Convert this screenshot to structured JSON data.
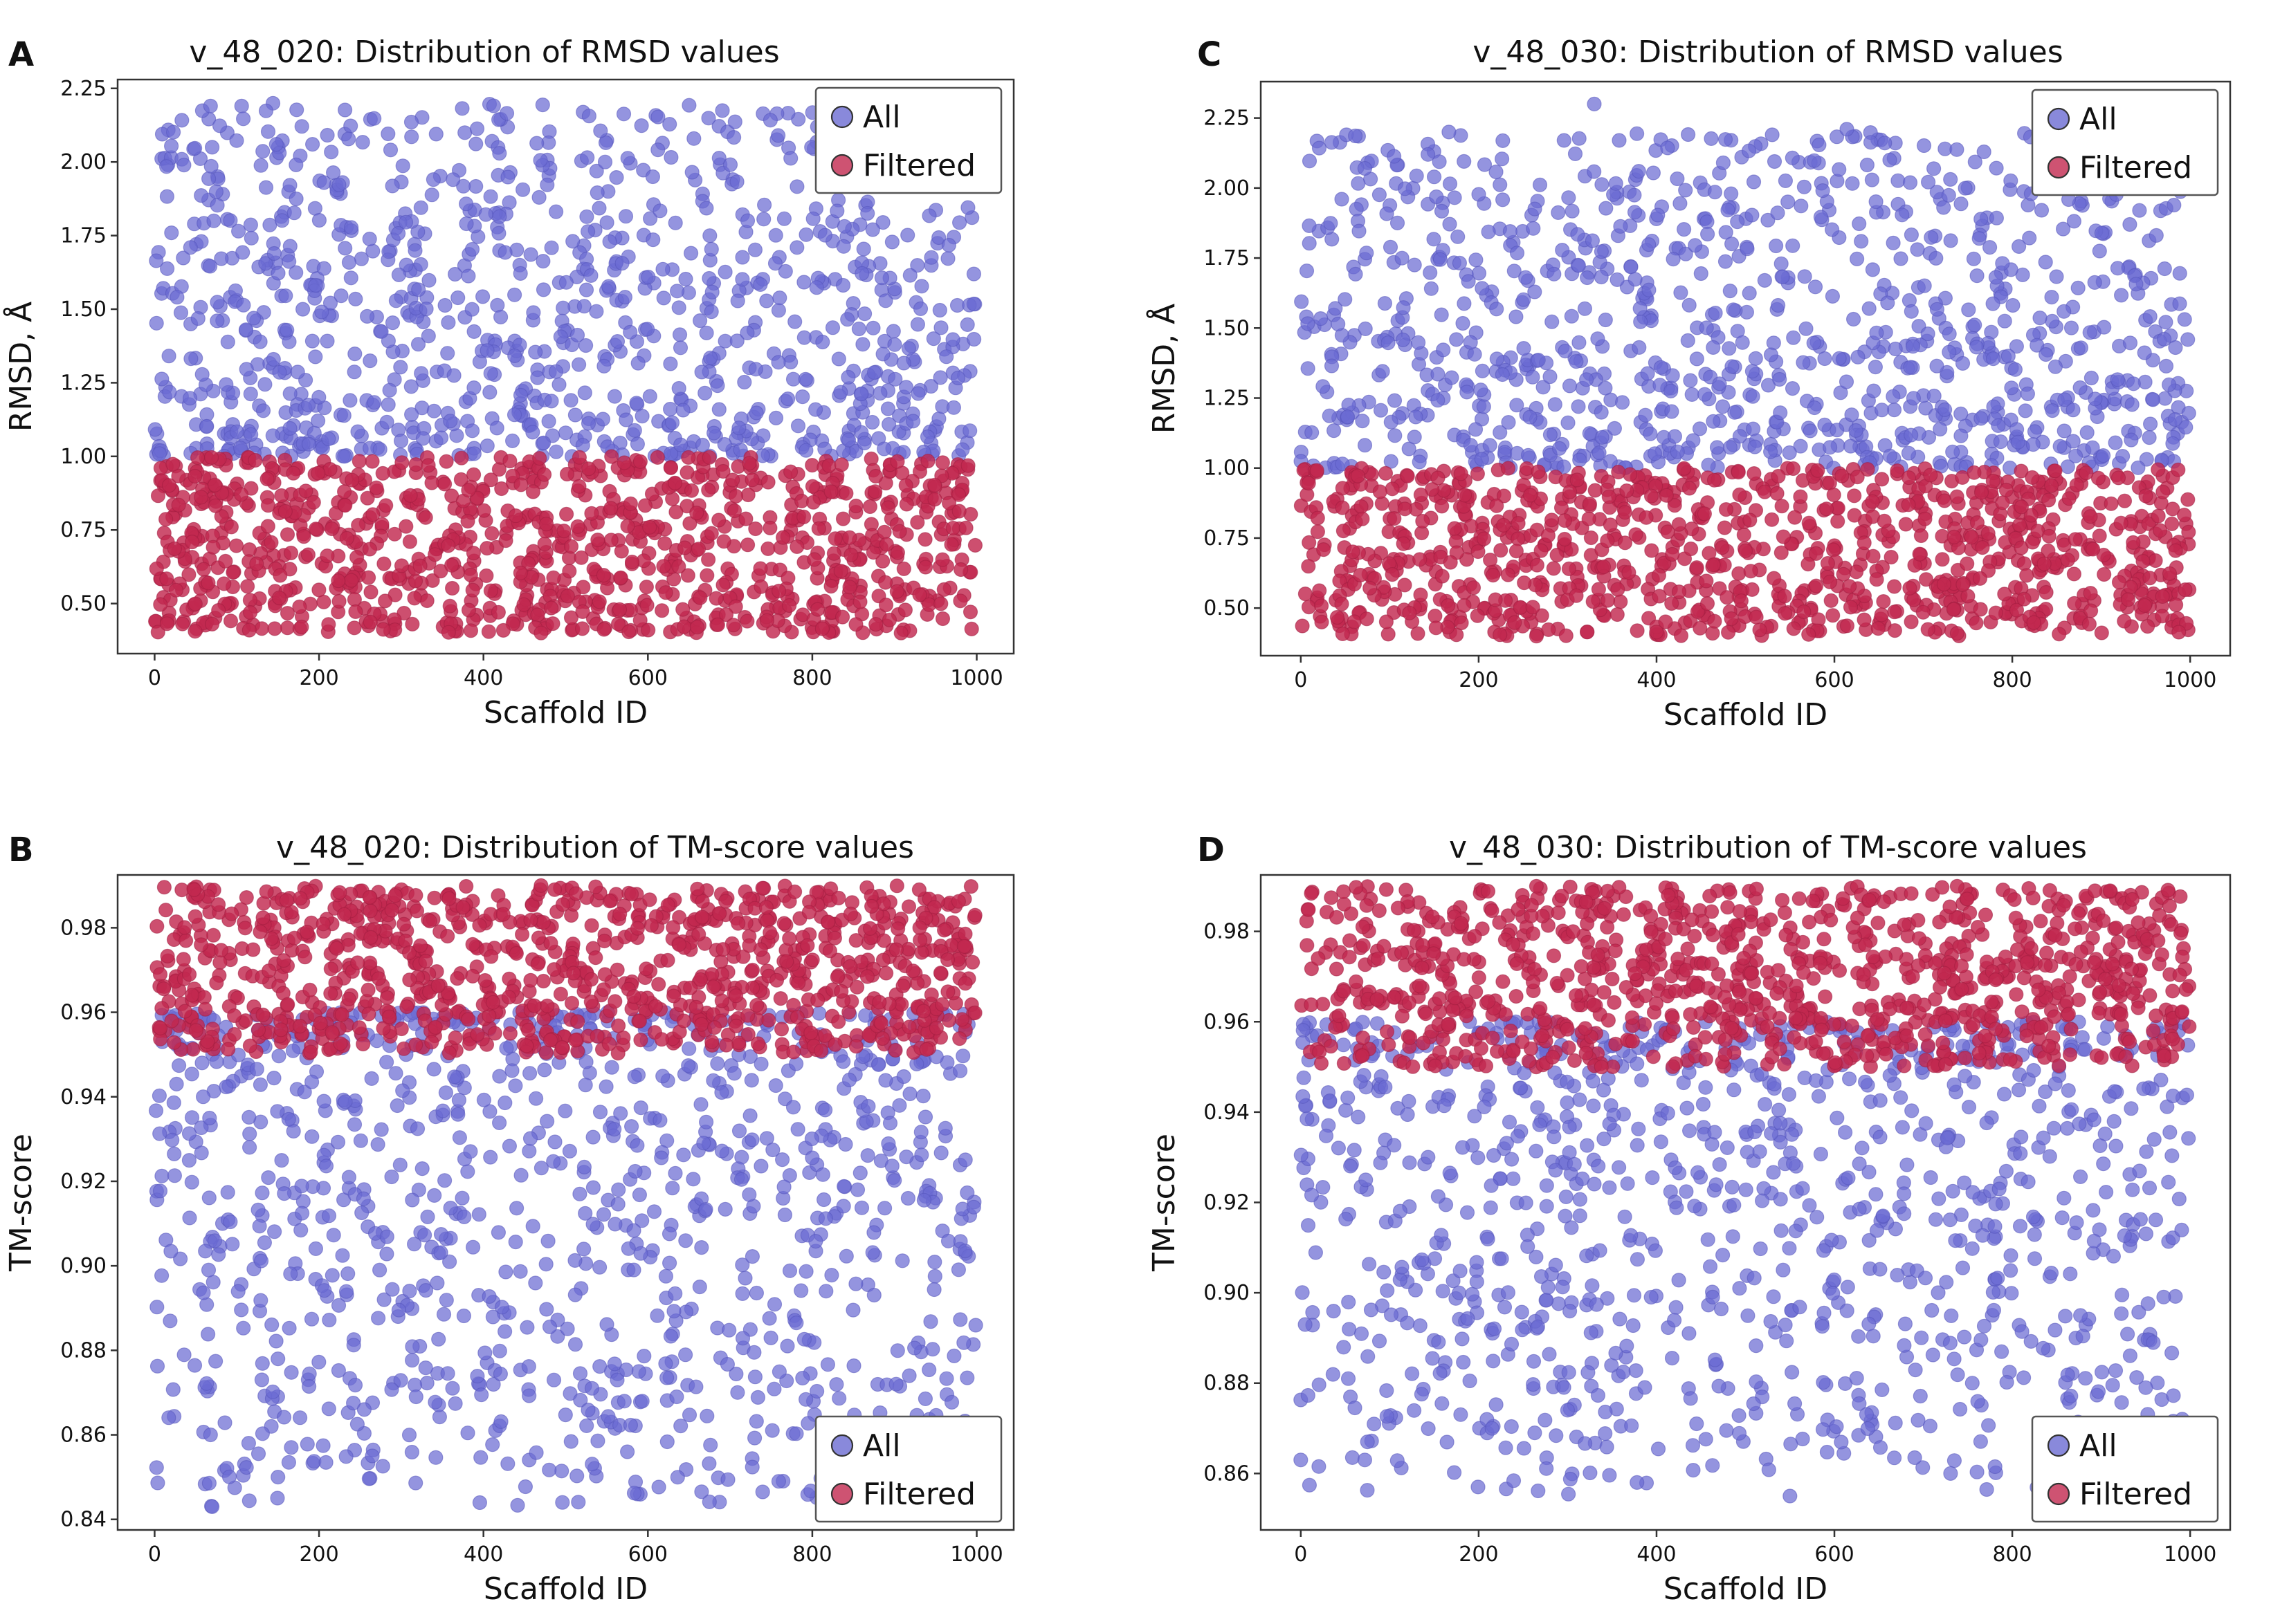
{
  "colors": {
    "all": "#6b6bd2",
    "filtered": "#c2284f",
    "all_edge": "#5555bb",
    "filtered_edge": "#a01d40"
  },
  "chart_data": [
    {
      "panel": "A",
      "type": "scatter",
      "title": "v_48_020: Distribution of RMSD values",
      "xlabel": "Scaffold ID",
      "ylabel": "RMSD, Å",
      "xlim": [
        -45,
        1045
      ],
      "ylim": [
        0.33,
        2.28
      ],
      "xticks": [
        0,
        200,
        400,
        600,
        800,
        1000
      ],
      "xtick_labels": [
        "0",
        "200",
        "400",
        "600",
        "800",
        "1000"
      ],
      "yticks": [
        0.5,
        0.75,
        1.0,
        1.25,
        1.5,
        1.75,
        2.0,
        2.25
      ],
      "ytick_labels": [
        "0.50",
        "0.75",
        "1.00",
        "1.25",
        "1.50",
        "1.75",
        "2.00",
        "2.25"
      ],
      "legend": {
        "position": "top-right",
        "entries": [
          "All",
          "Filtered"
        ]
      },
      "series": [
        {
          "name": "All",
          "n": 1000,
          "x_range": [
            0,
            999
          ],
          "value_range": [
            1.0,
            2.2
          ],
          "mode": "upper",
          "seed": 11,
          "highlights": [
            [
              68,
              2.19
            ],
            [
              70,
              2.05
            ],
            [
              148,
              2.06
            ],
            [
              192,
              2.06
            ],
            [
              172,
              1.99
            ],
            [
              206,
              1.93
            ],
            [
              548,
              2.0
            ],
            [
              606,
              1.95
            ],
            [
              799,
              2.05
            ],
            [
              915,
              2.0
            ],
            [
              922,
              1.95
            ],
            [
              862,
              1.96
            ],
            [
              72,
              1.8
            ],
            [
              363,
              1.94
            ]
          ]
        },
        {
          "name": "Filtered",
          "n": 1000,
          "x_range": [
            0,
            999
          ],
          "value_range": [
            0.4,
            1.0
          ],
          "mode": "band",
          "seed": 23,
          "highlights": [
            [
              470,
              0.4
            ],
            [
              908,
              0.4
            ],
            [
              70,
              0.43
            ],
            [
              660,
              0.42
            ]
          ]
        }
      ]
    },
    {
      "panel": "C",
      "type": "scatter",
      "title": "v_48_030: Distribution of RMSD values",
      "xlabel": "Scaffold ID",
      "ylabel": "RMSD, Å",
      "xlim": [
        -45,
        1045
      ],
      "ylim": [
        0.33,
        2.38
      ],
      "xticks": [
        0,
        200,
        400,
        600,
        800,
        1000
      ],
      "xtick_labels": [
        "0",
        "200",
        "400",
        "600",
        "800",
        "1000"
      ],
      "yticks": [
        0.5,
        0.75,
        1.0,
        1.25,
        1.5,
        1.75,
        2.0,
        2.25
      ],
      "ytick_labels": [
        "0.50",
        "0.75",
        "1.00",
        "1.25",
        "1.50",
        "1.75",
        "2.00",
        "2.25"
      ],
      "legend": {
        "position": "top-right",
        "entries": [
          "All",
          "Filtered"
        ]
      },
      "series": [
        {
          "name": "All",
          "n": 1000,
          "x_range": [
            0,
            999
          ],
          "value_range": [
            1.0,
            2.2
          ],
          "mode": "upper",
          "seed": 31,
          "highlights": [
            [
              330,
              2.3
            ],
            [
              614,
              2.21
            ],
            [
              358,
              2.17
            ],
            [
              296,
              2.17
            ],
            [
              530,
              2.19
            ],
            [
              143,
              2.12
            ],
            [
              72,
              2.07
            ],
            [
              150,
              2.04
            ],
            [
              380,
              2.06
            ],
            [
              475,
              2.09
            ],
            [
              46,
              1.96
            ],
            [
              943,
              1.92
            ],
            [
              937,
              2.04
            ]
          ]
        },
        {
          "name": "Filtered",
          "n": 1000,
          "x_range": [
            0,
            999
          ],
          "value_range": [
            0.4,
            1.0
          ],
          "mode": "band",
          "seed": 43,
          "highlights": [
            [
              265,
              0.4
            ],
            [
              738,
              0.41
            ],
            [
              668,
              0.42
            ]
          ]
        }
      ]
    },
    {
      "panel": "B",
      "type": "scatter",
      "title": "v_48_020: Distribution of TM-score values",
      "xlabel": "Scaffold ID",
      "ylabel": "TM-score",
      "xlim": [
        -45,
        1045
      ],
      "ylim": [
        0.8375,
        0.9925
      ],
      "xticks": [
        0,
        200,
        400,
        600,
        800,
        1000
      ],
      "xtick_labels": [
        "0",
        "200",
        "400",
        "600",
        "800",
        "1000"
      ],
      "yticks": [
        0.84,
        0.86,
        0.88,
        0.9,
        0.92,
        0.94,
        0.96,
        0.98
      ],
      "ytick_labels": [
        "0.84",
        "0.86",
        "0.88",
        "0.90",
        "0.92",
        "0.94",
        "0.96",
        "0.98"
      ],
      "legend": {
        "position": "bottom-right",
        "entries": [
          "All",
          "Filtered"
        ]
      },
      "series": [
        {
          "name": "All",
          "n": 1000,
          "x_range": [
            0,
            999
          ],
          "value_range": [
            0.843,
            0.96
          ],
          "mode": "lower",
          "seed": 53,
          "highlights": [
            [
              70,
              0.843
            ],
            [
              150,
              0.85
            ],
            [
              68,
              0.86
            ],
            [
              575,
              0.856
            ],
            [
              255,
              0.866
            ],
            [
              635,
              0.869
            ],
            [
              318,
              0.869
            ],
            [
              532,
              0.871
            ],
            [
              902,
              0.872
            ],
            [
              918,
              0.874
            ],
            [
              150,
              0.878
            ]
          ]
        },
        {
          "name": "Filtered",
          "n": 1000,
          "x_range": [
            0,
            999
          ],
          "value_range": [
            0.95,
            0.99
          ],
          "mode": "band",
          "seed": 61,
          "highlights": [
            [
              470,
              0.99
            ],
            [
              48,
              0.989
            ],
            [
              930,
              0.989
            ]
          ]
        }
      ]
    },
    {
      "panel": "D",
      "type": "scatter",
      "title": "v_48_030: Distribution of TM-score values",
      "xlabel": "Scaffold ID",
      "ylabel": "TM-score",
      "xlim": [
        -45,
        1045
      ],
      "ylim": [
        0.8475,
        0.9925
      ],
      "xticks": [
        0,
        200,
        400,
        600,
        800,
        1000
      ],
      "xtick_labels": [
        "0",
        "200",
        "400",
        "600",
        "800",
        "1000"
      ],
      "yticks": [
        0.86,
        0.88,
        0.9,
        0.92,
        0.94,
        0.96,
        0.98
      ],
      "ytick_labels": [
        "0.86",
        "0.88",
        "0.90",
        "0.92",
        "0.94",
        "0.96",
        "0.98"
      ],
      "legend": {
        "position": "bottom-right",
        "entries": [
          "All",
          "Filtered"
        ]
      },
      "series": [
        {
          "name": "All",
          "n": 1000,
          "x_range": [
            0,
            999
          ],
          "value_range": [
            0.855,
            0.96
          ],
          "mode": "lower",
          "seed": 71,
          "highlights": [
            [
              0,
              0.863
            ],
            [
              72,
              0.863
            ],
            [
              75,
              0.867
            ],
            [
              550,
              0.855
            ],
            [
              378,
              0.858
            ],
            [
              263,
              0.869
            ],
            [
              215,
              0.87
            ],
            [
              300,
              0.874
            ],
            [
              445,
              0.871
            ],
            [
              950,
              0.879
            ]
          ]
        },
        {
          "name": "Filtered",
          "n": 1000,
          "x_range": [
            0,
            999
          ],
          "value_range": [
            0.95,
            0.99
          ],
          "mode": "band",
          "seed": 83,
          "highlights": [
            [
              265,
              0.99
            ],
            [
              738,
              0.99
            ],
            [
              893,
              0.989
            ],
            [
              910,
              0.989
            ]
          ]
        }
      ]
    }
  ]
}
